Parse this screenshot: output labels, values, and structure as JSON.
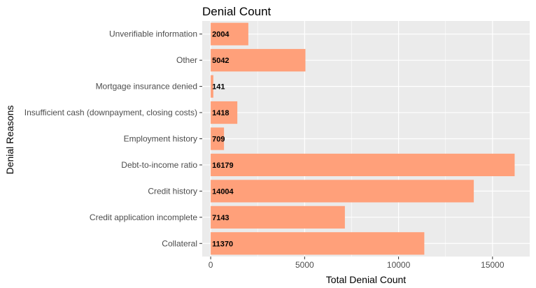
{
  "chart_data": {
    "type": "bar",
    "orientation": "horizontal",
    "title": "Denial Count",
    "xlabel": "Total Denial Count",
    "ylabel": "Denial Reasons",
    "categories": [
      "Unverifiable information",
      "Other",
      "Mortgage insurance denied",
      "Insufficient cash (downpayment, closing costs)",
      "Employment history",
      "Debt-to-income ratio",
      "Credit history",
      "Credit application incomplete",
      "Collateral"
    ],
    "values": [
      2004,
      5042,
      141,
      1418,
      709,
      16179,
      14004,
      7143,
      11370
    ],
    "data_labels": [
      "2004",
      "5042",
      "141",
      "1418",
      "709",
      "16179",
      "14004",
      "7143",
      "11370"
    ],
    "xlim": [
      -450,
      16980
    ],
    "xticks": [
      0,
      5000,
      10000,
      15000
    ],
    "xtick_labels": [
      "0",
      "5000",
      "10000",
      "15000"
    ],
    "bar_color": "#ffa07a",
    "panel_background": "#ebebeb",
    "grid_color": "#ffffff",
    "grid": true,
    "legend": "none"
  }
}
